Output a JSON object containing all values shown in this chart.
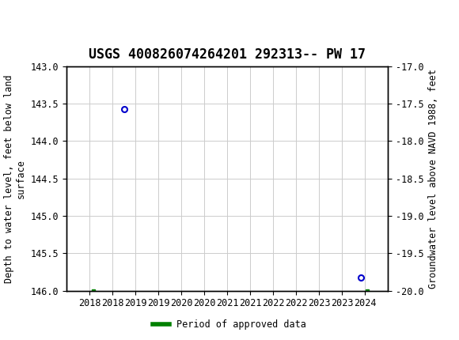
{
  "title": "USGS 400826074264201 292313-- PW 17",
  "ylabel_left": "Depth to water level, feet below land\nsurface",
  "ylabel_right": "Groundwater level above NAVD 1988, feet",
  "xlim": [
    2017.5,
    2024.5
  ],
  "ylim_left": [
    146.0,
    143.0
  ],
  "ylim_right": [
    -20.0,
    -17.0
  ],
  "yticks_left": [
    143.0,
    143.5,
    144.0,
    144.5,
    145.0,
    145.5,
    146.0
  ],
  "yticks_right": [
    -17.0,
    -17.5,
    -18.0,
    -18.5,
    -19.0,
    -19.5,
    -20.0
  ],
  "xticks": [
    2018,
    2018.5,
    2019,
    2019.5,
    2020,
    2020.5,
    2021,
    2021.5,
    2022,
    2022.5,
    2023,
    2023.5,
    2024
  ],
  "xtick_labels": [
    "2018",
    "2018",
    "2019",
    "2019",
    "2020",
    "2020",
    "2021",
    "2021",
    "2022",
    "2022",
    "2023",
    "2023",
    "2024"
  ],
  "data_points_x": [
    2018.75,
    2023.92
  ],
  "data_points_y": [
    143.57,
    145.82
  ],
  "data_point_color": "#0000cc",
  "approved_data_x": [
    2018.08,
    2024.05
  ],
  "approved_data_y": [
    146.0,
    146.0
  ],
  "approved_data_color": "#008000",
  "header_bg_color": "#1a6b3a",
  "header_text_color": "#ffffff",
  "background_color": "#ffffff",
  "grid_color": "#cccccc",
  "legend_label": "Period of approved data",
  "title_fontsize": 12,
  "axis_label_fontsize": 8.5,
  "tick_fontsize": 8.5,
  "font_family": "monospace"
}
